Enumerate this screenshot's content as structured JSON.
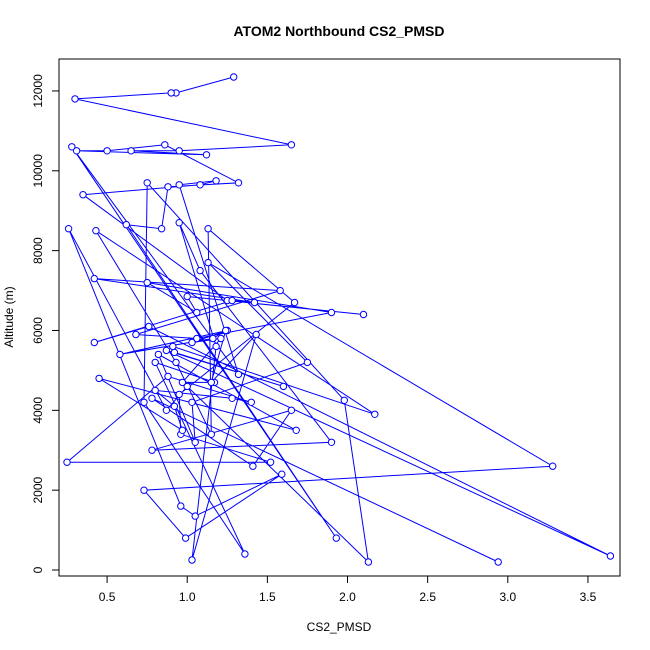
{
  "chart_data": {
    "type": "line",
    "title": "ATOM2 Northbound CS2_PMSD",
    "xlabel": "CS2_PMSD",
    "ylabel": "Altitude (m)",
    "xlim": [
      0.2,
      3.7
    ],
    "ylim": [
      -150,
      12800
    ],
    "x_ticks": [
      0.5,
      1.0,
      1.5,
      2.0,
      2.5,
      3.0,
      3.5
    ],
    "x_tick_labels": [
      "0.5",
      "1.0",
      "1.5",
      "2.0",
      "2.5",
      "3.0",
      "3.5"
    ],
    "y_ticks": [
      0,
      2000,
      4000,
      6000,
      8000,
      10000,
      12000
    ],
    "y_tick_labels": [
      "0",
      "2000",
      "4000",
      "6000",
      "8000",
      "10000",
      "12000"
    ],
    "marker": "open-circle",
    "line_style": "connected",
    "color": "#0000ff",
    "grid": false,
    "legend": "none",
    "series": [
      {
        "x": [
          1.29,
          0.93,
          0.9,
          0.3,
          1.65,
          0.95,
          0.65,
          1.12,
          0.31,
          0.5,
          0.86,
          1.32,
          0.88,
          0.84,
          0.62,
          1.93,
          0.28,
          1.32,
          0.95,
          1.18,
          1.08,
          0.35,
          1.25,
          2.1,
          1.0,
          1.06,
          0.75,
          1.9,
          1.06,
          0.68,
          1.58,
          0.42,
          1.42,
          1.28,
          0.42,
          0.76,
          3.64,
          0.87,
          1.6,
          0.92,
          0.91,
          2.17,
          0.43,
          0.93,
          1.15,
          1.13,
          1.67,
          0.95,
          0.96,
          1.52,
          0.25,
          0.88,
          1.4,
          1.28,
          0.8,
          0.92,
          0.97,
          0.45,
          1.68,
          0.82,
          1.05,
          1.03,
          1.75,
          1.13,
          3.28,
          0.73,
          0.99,
          1.59,
          1.05,
          0.96,
          0.26,
          0.87,
          1.0,
          2.13,
          1.98,
          0.75,
          0.73,
          1.36,
          0.8,
          1.17,
          0.97,
          1.21,
          1.03,
          1.25,
          0.58,
          1.16,
          1.24,
          1.15,
          1.43,
          1.03,
          1.18,
          0.95,
          1.08,
          1.9,
          0.78,
          1.65,
          1.41,
          0.78,
          2.94
        ],
        "y": [
          12350,
          11950,
          11950,
          11800,
          10650,
          10500,
          10500,
          10400,
          10500,
          10500,
          10650,
          9700,
          9600,
          8550,
          8650,
          800,
          10600,
          4900,
          9650,
          9750,
          9650,
          9400,
          6750,
          6400,
          6850,
          6450,
          7200,
          6450,
          5800,
          5900,
          7000,
          7300,
          6700,
          6750,
          5700,
          6100,
          350,
          5500,
          4600,
          5450,
          5600,
          3900,
          8500,
          5200,
          3400,
          8550,
          6700,
          4400,
          3400,
          2700,
          2700,
          4850,
          4200,
          4300,
          4500,
          4100,
          3500,
          4800,
          3500,
          5400,
          3200,
          4200,
          5200,
          7700,
          2600,
          2000,
          800,
          2400,
          1350,
          1600,
          8550,
          4000,
          4600,
          200,
          4250,
          9700,
          4200,
          400,
          5200,
          4700,
          4700,
          5800,
          5700,
          6000,
          5400,
          5800,
          6000,
          4700,
          5900,
          250,
          5600,
          8700,
          7500,
          3200,
          3000,
          4000,
          2600,
          4300,
          200
        ]
      }
    ]
  }
}
